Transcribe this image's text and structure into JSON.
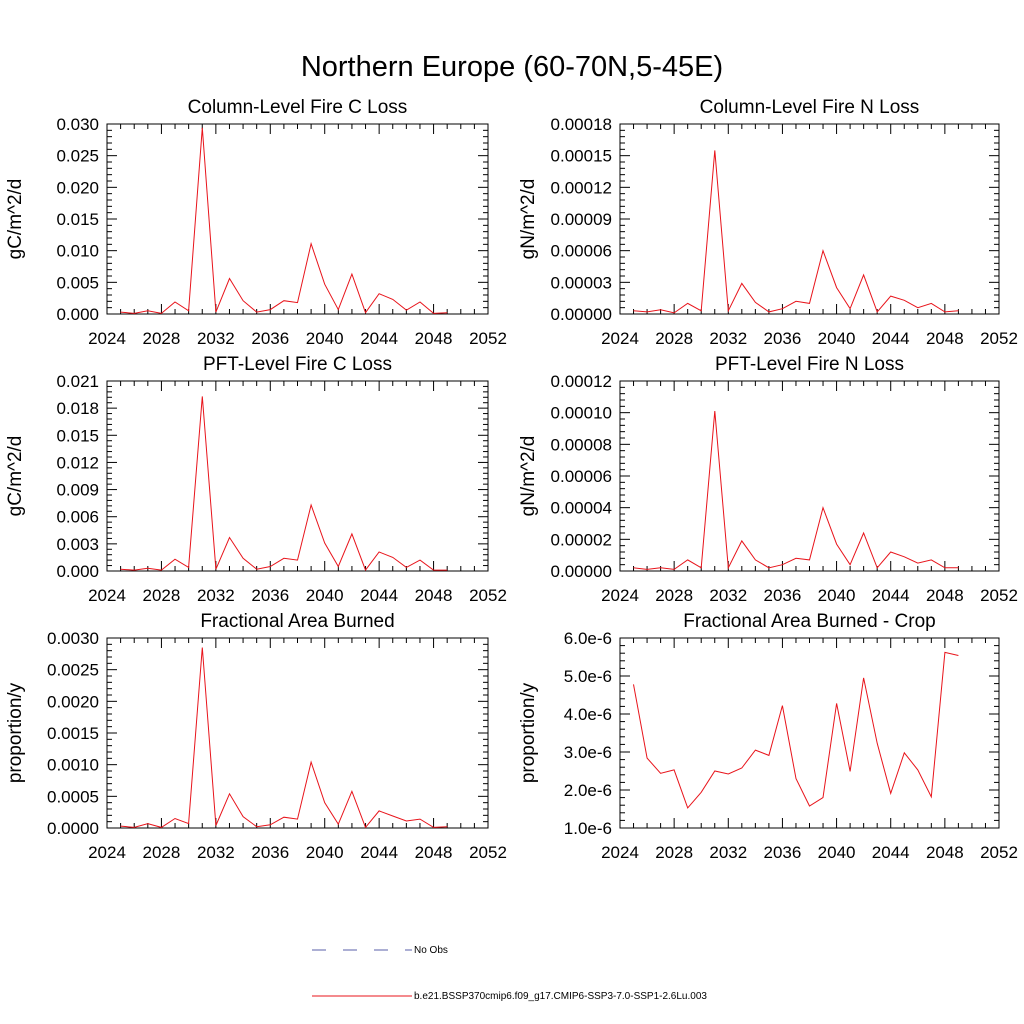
{
  "figure_title": "Northern Europe (60-70N,5-45E)",
  "colors": {
    "series": "#e8141b",
    "noobs": "#5a5fa8",
    "axis": "#000000"
  },
  "legend": {
    "items": [
      {
        "label": "No Obs",
        "style": "dashed",
        "color": "#5a5fa8"
      },
      {
        "label": "b.e21.BSSP370cmip6.f09_g17.CMIP6-SSP3-7.0-SSP1-2.6Lu.003",
        "style": "solid",
        "color": "#e8141b"
      }
    ]
  },
  "chart_data": [
    {
      "type": "line",
      "title": "Column-Level Fire C Loss",
      "ylabel": "gC/m^2/d",
      "xlim": [
        2024,
        2052
      ],
      "ylim": [
        0,
        0.03
      ],
      "xticks": [
        2024,
        2028,
        2032,
        2036,
        2040,
        2044,
        2048,
        2052
      ],
      "xtick_labels": [
        "2024",
        "2028",
        "2032",
        "2036",
        "2040",
        "2044",
        "2048",
        "2052"
      ],
      "yticks": [
        0,
        0.005,
        0.01,
        0.015,
        0.02,
        0.025,
        0.03
      ],
      "ytick_labels": [
        "0.000",
        "0.005",
        "0.010",
        "0.015",
        "0.020",
        "0.025",
        "0.030"
      ],
      "x": [
        2025,
        2026,
        2027,
        2028,
        2029,
        2030,
        2031,
        2032,
        2033,
        2034,
        2035,
        2036,
        2037,
        2038,
        2039,
        2040,
        2041,
        2042,
        2043,
        2044,
        2045,
        2046,
        2047,
        2048,
        2049
      ],
      "y": [
        0.0003,
        0.0001,
        0.0005,
        0.0001,
        0.0019,
        0.0005,
        0.0294,
        0.0003,
        0.0056,
        0.0021,
        0.0003,
        0.0007,
        0.0021,
        0.0018,
        0.0111,
        0.0047,
        0.0007,
        0.0063,
        0.0002,
        0.0032,
        0.0023,
        0.0006,
        0.0019,
        0.0001,
        0.0002
      ]
    },
    {
      "type": "line",
      "title": "Column-Level Fire N Loss",
      "ylabel": "gN/m^2/d",
      "xlim": [
        2024,
        2052
      ],
      "ylim": [
        0,
        0.00018
      ],
      "xticks": [
        2024,
        2028,
        2032,
        2036,
        2040,
        2044,
        2048,
        2052
      ],
      "xtick_labels": [
        "2024",
        "2028",
        "2032",
        "2036",
        "2040",
        "2044",
        "2048",
        "2052"
      ],
      "yticks": [
        0,
        3e-05,
        6e-05,
        9e-05,
        0.00012,
        0.00015,
        0.00018
      ],
      "ytick_labels": [
        "0.00000",
        "0.00003",
        "0.00006",
        "0.00009",
        "0.00012",
        "0.00015",
        "0.00018"
      ],
      "x": [
        2025,
        2026,
        2027,
        2028,
        2029,
        2030,
        2031,
        2032,
        2033,
        2034,
        2035,
        2036,
        2037,
        2038,
        2039,
        2040,
        2041,
        2042,
        2043,
        2044,
        2045,
        2046,
        2047,
        2048,
        2049
      ],
      "y": [
        3e-06,
        2e-06,
        4e-06,
        1e-06,
        1e-05,
        3e-06,
        0.000155,
        3e-06,
        2.9e-05,
        1.1e-05,
        2e-06,
        5e-06,
        1.2e-05,
        1e-05,
        6e-05,
        2.5e-05,
        5e-06,
        3.7e-05,
        2e-06,
        1.7e-05,
        1.3e-05,
        6e-06,
        1e-05,
        2e-06,
        3e-06
      ]
    },
    {
      "type": "line",
      "title": "PFT-Level Fire C Loss",
      "ylabel": "gC/m^2/d",
      "xlim": [
        2024,
        2052
      ],
      "ylim": [
        0,
        0.021
      ],
      "xticks": [
        2024,
        2028,
        2032,
        2036,
        2040,
        2044,
        2048,
        2052
      ],
      "xtick_labels": [
        "2024",
        "2028",
        "2032",
        "2036",
        "2040",
        "2044",
        "2048",
        "2052"
      ],
      "yticks": [
        0,
        0.003,
        0.006,
        0.009,
        0.012,
        0.015,
        0.018,
        0.021
      ],
      "ytick_labels": [
        "0.000",
        "0.003",
        "0.006",
        "0.009",
        "0.012",
        "0.015",
        "0.018",
        "0.021"
      ],
      "x": [
        2025,
        2026,
        2027,
        2028,
        2029,
        2030,
        2031,
        2032,
        2033,
        2034,
        2035,
        2036,
        2037,
        2038,
        2039,
        2040,
        2041,
        2042,
        2043,
        2044,
        2045,
        2046,
        2047,
        2048,
        2049
      ],
      "y": [
        0.0002,
        0.0001,
        0.0003,
        0.0001,
        0.0013,
        0.0004,
        0.0193,
        0.0002,
        0.0037,
        0.0014,
        0.0002,
        0.0005,
        0.0014,
        0.0012,
        0.0073,
        0.0031,
        0.0005,
        0.0041,
        0.0001,
        0.0021,
        0.0015,
        0.0004,
        0.0012,
        0.0001,
        0.0001
      ]
    },
    {
      "type": "line",
      "title": "PFT-Level Fire N Loss",
      "ylabel": "gN/m^2/d",
      "xlim": [
        2024,
        2052
      ],
      "ylim": [
        0,
        0.00012
      ],
      "xticks": [
        2024,
        2028,
        2032,
        2036,
        2040,
        2044,
        2048,
        2052
      ],
      "xtick_labels": [
        "2024",
        "2028",
        "2032",
        "2036",
        "2040",
        "2044",
        "2048",
        "2052"
      ],
      "yticks": [
        0,
        2e-05,
        4e-05,
        6e-05,
        8e-05,
        0.0001,
        0.00012
      ],
      "ytick_labels": [
        "0.00000",
        "0.00002",
        "0.00004",
        "0.00006",
        "0.00008",
        "0.00010",
        "0.00012"
      ],
      "x": [
        2025,
        2026,
        2027,
        2028,
        2029,
        2030,
        2031,
        2032,
        2033,
        2034,
        2035,
        2036,
        2037,
        2038,
        2039,
        2040,
        2041,
        2042,
        2043,
        2044,
        2045,
        2046,
        2047,
        2048,
        2049
      ],
      "y": [
        2e-06,
        1e-06,
        2e-06,
        1e-06,
        7e-06,
        2e-06,
        0.000101,
        2e-06,
        1.9e-05,
        7e-06,
        2e-06,
        4e-06,
        8e-06,
        7e-06,
        4e-05,
        1.7e-05,
        4e-06,
        2.4e-05,
        2e-06,
        1.2e-05,
        9e-06,
        5e-06,
        7e-06,
        2e-06,
        2e-06
      ]
    },
    {
      "type": "line",
      "title": "Fractional Area Burned",
      "ylabel": "proportion/y",
      "xlim": [
        2024,
        2052
      ],
      "ylim": [
        0,
        0.003
      ],
      "xticks": [
        2024,
        2028,
        2032,
        2036,
        2040,
        2044,
        2048,
        2052
      ],
      "xtick_labels": [
        "2024",
        "2028",
        "2032",
        "2036",
        "2040",
        "2044",
        "2048",
        "2052"
      ],
      "yticks": [
        0,
        0.0005,
        0.001,
        0.0015,
        0.002,
        0.0025,
        0.003
      ],
      "ytick_labels": [
        "0.0000",
        "0.0005",
        "0.0010",
        "0.0015",
        "0.0020",
        "0.0025",
        "0.0030"
      ],
      "x": [
        2025,
        2026,
        2027,
        2028,
        2029,
        2030,
        2031,
        2032,
        2033,
        2034,
        2035,
        2036,
        2037,
        2038,
        2039,
        2040,
        2041,
        2042,
        2043,
        2044,
        2045,
        2046,
        2047,
        2048,
        2049
      ],
      "y": [
        3e-05,
        1e-05,
        7e-05,
        1e-05,
        0.00015,
        7e-05,
        0.00285,
        4e-05,
        0.00054,
        0.00018,
        2e-05,
        5e-05,
        0.00017,
        0.00014,
        0.00104,
        0.0004,
        6e-05,
        0.00058,
        1e-05,
        0.00027,
        0.00019,
        0.00011,
        0.00014,
        1e-05,
        2e-05
      ]
    },
    {
      "type": "line",
      "title": "Fractional Area Burned - Crop",
      "ylabel": "proportion/y",
      "xlim": [
        2024,
        2052
      ],
      "ylim": [
        1e-06,
        6e-06
      ],
      "xticks": [
        2024,
        2028,
        2032,
        2036,
        2040,
        2044,
        2048,
        2052
      ],
      "xtick_labels": [
        "2024",
        "2028",
        "2032",
        "2036",
        "2040",
        "2044",
        "2048",
        "2052"
      ],
      "yticks": [
        1e-06,
        2e-06,
        3e-06,
        4e-06,
        5e-06,
        6e-06
      ],
      "ytick_labels": [
        "1.0e-6",
        "2.0e-6",
        "3.0e-6",
        "4.0e-6",
        "5.0e-6",
        "6.0e-6"
      ],
      "x": [
        2025,
        2026,
        2027,
        2028,
        2029,
        2030,
        2031,
        2032,
        2033,
        2034,
        2035,
        2036,
        2037,
        2038,
        2039,
        2040,
        2041,
        2042,
        2043,
        2044,
        2045,
        2046,
        2047,
        2048,
        2049
      ],
      "y": [
        4.78e-06,
        2.84e-06,
        2.44e-06,
        2.53e-06,
        1.53e-06,
        1.94e-06,
        2.5e-06,
        2.42e-06,
        2.58e-06,
        3.05e-06,
        2.91e-06,
        4.22e-06,
        2.3e-06,
        1.58e-06,
        1.8e-06,
        4.28e-06,
        2.49e-06,
        4.95e-06,
        3.23e-06,
        1.91e-06,
        2.98e-06,
        2.53e-06,
        1.82e-06,
        5.62e-06,
        5.54e-06
      ]
    }
  ]
}
